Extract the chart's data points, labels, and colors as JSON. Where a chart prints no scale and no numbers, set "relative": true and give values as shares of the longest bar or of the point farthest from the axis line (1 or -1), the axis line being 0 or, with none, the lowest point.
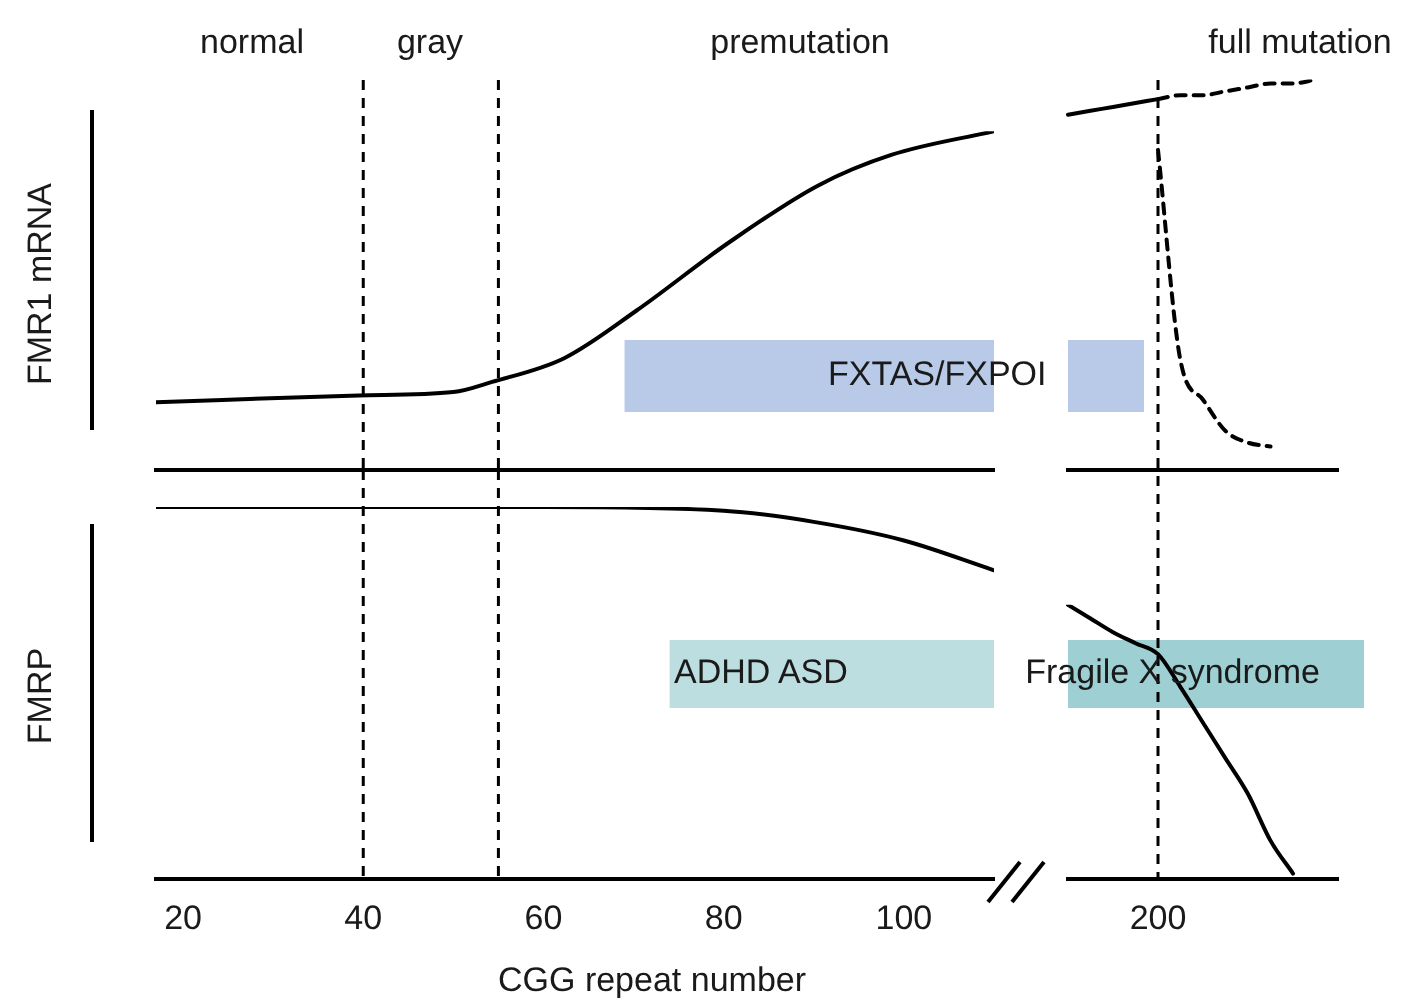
{
  "chart_data": [
    {
      "type": "line",
      "relative": true,
      "ylabel": "FMR1 mRNA",
      "xlim": [
        17,
        110
      ],
      "tick_labels": false,
      "annotations": [
        "normal",
        "gray",
        "premutation"
      ],
      "ref_lines": [
        {
          "axis": "x",
          "value": 40,
          "line_style": "dashed"
        },
        {
          "axis": "x",
          "value": 55,
          "line_style": "dashed"
        }
      ],
      "bands": [
        {
          "axis": "x",
          "from": 69,
          "to": 110,
          "label": "FXTAS/FXPOI",
          "color": "#7d9fd6"
        }
      ],
      "series": [
        {
          "color": "#000000",
          "line_style": "solid",
          "x": [
            17,
            39.5,
            50,
            54.3,
            62.3,
            70.3,
            80.5,
            90.5,
            98.6,
            110
          ],
          "values": [
            0.2,
            0.22,
            0.23,
            0.26,
            0.33,
            0.47,
            0.67,
            0.84,
            0.93,
            1
          ]
        }
      ]
    },
    {
      "type": "line",
      "relative": true,
      "tick_labels": false,
      "categories": [
        null,
        null,
        null,
        null,
        null,
        null,
        null,
        null,
        null,
        null,
        null,
        null,
        null
      ],
      "annotations": [
        "full mutation"
      ],
      "series": [
        {
          "color": "#000000",
          "line_style": "solid",
          "values": [
            0.91,
            0.92,
            0.93,
            0.94,
            0.95,
            null,
            null,
            null,
            null,
            null,
            null,
            null,
            null
          ]
        },
        {
          "color": "#000000",
          "line_style": "dashed",
          "values": [
            null,
            null,
            null,
            null,
            0.95,
            0.96,
            0.96,
            0.97,
            0.98,
            0.99,
            0.99,
            1,
            null
          ]
        },
        {
          "color": "#000000",
          "line_style": "dashed",
          "values": [
            null,
            null,
            null,
            null,
            0.82,
            0.28,
            0.18,
            0.1,
            0.07,
            0.06,
            null,
            null,
            null
          ]
        }
      ]
    },
    {
      "type": "line",
      "relative": true,
      "ylabel": "FMRP",
      "xlabel": "CGG repeat number",
      "xlim": [
        17,
        110
      ],
      "xticks": [
        20,
        40,
        60,
        80,
        100
      ],
      "tick_labels": "x",
      "ref_lines": [
        {
          "axis": "x",
          "value": 40,
          "line_style": "dashed"
        },
        {
          "axis": "x",
          "value": 55,
          "line_style": "dashed"
        }
      ],
      "bands": [
        {
          "axis": "x",
          "from": 74,
          "to": 110,
          "label": "ADHD ASD",
          "color": "#86c3c8"
        }
      ],
      "series": [
        {
          "color": "#000000",
          "line_style": "solid",
          "x": [
            17,
            40,
            60,
            80,
            90,
            100,
            110
          ],
          "values": [
            1,
            1,
            1,
            0.99,
            0.96,
            0.91,
            0.83
          ]
        }
      ]
    },
    {
      "type": "line",
      "relative": true,
      "tick_labels": false,
      "categories": [
        null,
        null,
        null,
        null,
        null,
        null,
        null,
        null,
        null,
        null,
        null,
        null,
        null
      ],
      "annotations": [
        "Fragile X syndrome",
        "200"
      ],
      "series": [
        {
          "color": "#000000",
          "line_style": "solid",
          "values": [
            1,
            0.95,
            0.9,
            0.86,
            0.82,
            0.7,
            0.57,
            0.44,
            0.31,
            0.14,
            0.02,
            null,
            null
          ]
        }
      ]
    }
  ]
}
